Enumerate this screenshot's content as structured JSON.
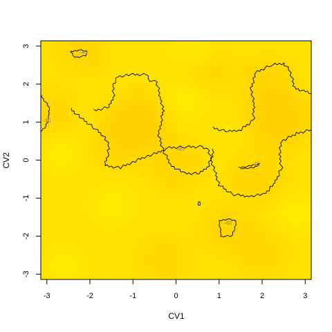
{
  "chart_data": {
    "type": "heatmap",
    "title": "",
    "xlabel": "CV1",
    "ylabel": "CV2",
    "xlim": [
      -3.14,
      3.14
    ],
    "ylim": [
      -3.14,
      3.14
    ],
    "x_ticks": [
      -3,
      -2,
      -1,
      0,
      1,
      2,
      3
    ],
    "y_ticks": [
      -3,
      -2,
      -1,
      0,
      1,
      2,
      3
    ],
    "x_tick_labels": [
      "-3",
      "-2",
      "-1",
      "0",
      "1",
      "2",
      "3"
    ],
    "y_tick_labels": [
      "-3",
      "-2",
      "-1",
      "0",
      "1",
      "2",
      "3"
    ],
    "grid": false,
    "legend": "none",
    "colors": {
      "low": "#FFF200",
      "mid": "#FFE200",
      "high": "#FFD000",
      "contour": "#000000",
      "contour_label": "#8a8a8a"
    },
    "hotspots": [
      {
        "x": -0.9,
        "y": 1.0,
        "level": 1.0
      },
      {
        "x": 2.4,
        "y": 1.05,
        "level": 1.0
      },
      {
        "x": 2.1,
        "y": 2.0,
        "level": 0.6
      },
      {
        "x": 0.0,
        "y": -0.1,
        "level": 0.45
      },
      {
        "x": 1.9,
        "y": -0.5,
        "level": 0.55
      },
      {
        "x": -1.3,
        "y": 0.4,
        "level": 0.45
      },
      {
        "x": -3.0,
        "y": 1.2,
        "level": 0.5
      },
      {
        "x": -2.2,
        "y": 2.9,
        "level": 0.35
      },
      {
        "x": 1.2,
        "y": -1.8,
        "level": 0.4
      },
      {
        "x": 0.7,
        "y": 2.4,
        "level": 0.25
      },
      {
        "x": -0.3,
        "y": -2.6,
        "level": 0.3
      },
      {
        "x": 2.0,
        "y": -2.4,
        "level": 0.3
      }
    ],
    "contour_level": -40,
    "contour_label_text": "-40",
    "contours": [
      {
        "name": "main",
        "points": [
          [
            -2.45,
            1.35
          ],
          [
            -2.2,
            1.1
          ],
          [
            -1.9,
            0.85
          ],
          [
            -1.65,
            0.6
          ],
          [
            -1.55,
            0.35
          ],
          [
            -1.6,
            0.1
          ],
          [
            -1.65,
            -0.15
          ],
          [
            -1.3,
            -0.2
          ],
          [
            -1.0,
            -0.05
          ],
          [
            -0.7,
            0.1
          ],
          [
            -0.4,
            0.2
          ],
          [
            -0.2,
            0.32
          ],
          [
            0.2,
            0.35
          ],
          [
            0.6,
            0.35
          ],
          [
            0.75,
            0.3
          ],
          [
            0.8,
            0.05
          ],
          [
            0.9,
            -0.3
          ],
          [
            1.0,
            -0.65
          ],
          [
            1.3,
            -0.9
          ],
          [
            1.7,
            -0.95
          ],
          [
            2.05,
            -0.9
          ],
          [
            2.3,
            -0.6
          ],
          [
            2.45,
            -0.2
          ],
          [
            2.4,
            0.15
          ],
          [
            2.45,
            0.5
          ],
          [
            2.8,
            0.7
          ],
          [
            3.14,
            0.8
          ]
        ]
      },
      {
        "name": "upper-left",
        "points": [
          [
            -1.9,
            1.3
          ],
          [
            -1.55,
            1.4
          ],
          [
            -1.45,
            1.7
          ],
          [
            -1.45,
            2.0
          ],
          [
            -1.35,
            2.2
          ],
          [
            -1.0,
            2.25
          ],
          [
            -0.7,
            2.25
          ],
          [
            -0.6,
            2.1
          ],
          [
            -0.45,
            2.05
          ],
          [
            -0.35,
            1.6
          ],
          [
            -0.3,
            1.3
          ],
          [
            -0.35,
            1.0
          ],
          [
            -0.4,
            0.65
          ],
          [
            -0.3,
            0.25
          ],
          [
            -0.1,
            -0.15
          ],
          [
            0.2,
            -0.35
          ],
          [
            0.55,
            -0.35
          ],
          [
            0.75,
            -0.15
          ],
          [
            0.85,
            0.15
          ],
          [
            0.85,
            0.3
          ]
        ]
      },
      {
        "name": "right",
        "points": [
          [
            0.85,
            0.85
          ],
          [
            1.2,
            0.75
          ],
          [
            1.5,
            0.8
          ],
          [
            1.8,
            1.05
          ],
          [
            1.8,
            1.5
          ],
          [
            1.75,
            1.9
          ],
          [
            1.85,
            2.3
          ],
          [
            2.2,
            2.5
          ],
          [
            2.5,
            2.55
          ],
          [
            2.65,
            2.35
          ],
          [
            2.75,
            1.9
          ],
          [
            3.0,
            1.8
          ],
          [
            3.14,
            1.75
          ]
        ]
      },
      {
        "name": "left-edge",
        "points": [
          [
            -3.14,
            1.7
          ],
          [
            -2.95,
            1.4
          ],
          [
            -2.95,
            1.1
          ],
          [
            -3.05,
            0.85
          ],
          [
            -3.14,
            0.75
          ]
        ]
      },
      {
        "name": "top-small",
        "points": [
          [
            -2.45,
            2.85
          ],
          [
            -2.25,
            2.9
          ],
          [
            -2.05,
            2.85
          ],
          [
            -2.1,
            2.75
          ],
          [
            -2.35,
            2.7
          ],
          [
            -2.45,
            2.85
          ]
        ]
      },
      {
        "name": "bottom-small",
        "points": [
          [
            1.0,
            -1.6
          ],
          [
            1.2,
            -1.55
          ],
          [
            1.4,
            -1.6
          ],
          [
            1.35,
            -1.85
          ],
          [
            1.3,
            -2.0
          ],
          [
            1.05,
            -2.0
          ],
          [
            1.0,
            -1.6
          ]
        ]
      },
      {
        "name": "center-dot",
        "points": [
          [
            0.52,
            -1.1
          ],
          [
            0.56,
            -1.12
          ],
          [
            0.55,
            -1.2
          ],
          [
            0.52,
            -1.18
          ],
          [
            0.52,
            -1.1
          ]
        ]
      },
      {
        "name": "inner-right",
        "points": [
          [
            1.45,
            -0.2
          ],
          [
            1.75,
            -0.15
          ],
          [
            1.95,
            -0.1
          ],
          [
            1.8,
            -0.2
          ],
          [
            1.5,
            -0.22
          ]
        ]
      }
    ],
    "contour_labels": [
      {
        "x": 0.1,
        "y": 0.3,
        "text": "-40"
      },
      {
        "x": -2.15,
        "y": 2.85,
        "text": "-40"
      },
      {
        "x": -3.0,
        "y": 1.05,
        "text": "-40"
      },
      {
        "x": 1.2,
        "y": -1.65,
        "text": "-40"
      },
      {
        "x": 1.85,
        "y": -0.1,
        "text": "-40"
      }
    ]
  }
}
